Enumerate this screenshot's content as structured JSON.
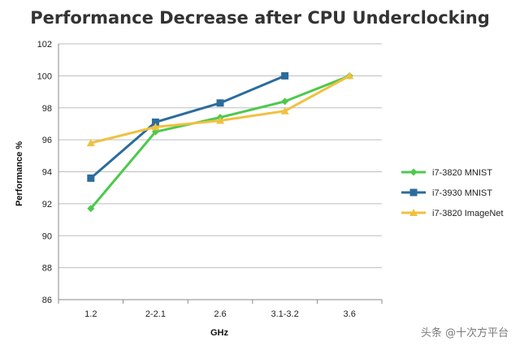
{
  "chart_data": {
    "type": "line",
    "title": "Performance Decrease after CPU Underclocking",
    "xlabel": "GHz",
    "ylabel": "Performance %",
    "categories": [
      "1.2",
      "2-2.1",
      "2.6",
      "3.1-3.2",
      "3.6"
    ],
    "ylim": [
      86,
      102
    ],
    "yticks": [
      86,
      88,
      90,
      92,
      94,
      96,
      98,
      100,
      102
    ],
    "grid": "horizontal",
    "legend": "right",
    "series": [
      {
        "name": "i7-3820 MNIST",
        "values": [
          91.7,
          96.5,
          97.4,
          98.4,
          100
        ],
        "color": "#4cc94c",
        "marker": "diamond"
      },
      {
        "name": "i7-3930 MNIST",
        "values": [
          93.6,
          97.1,
          98.3,
          100,
          null
        ],
        "color": "#2b6c9c",
        "marker": "square"
      },
      {
        "name": "i7-3820 ImageNet",
        "values": [
          95.8,
          96.8,
          97.2,
          97.8,
          100
        ],
        "color": "#f0c040",
        "marker": "triangle"
      }
    ]
  },
  "watermark": {
    "text": "头条 @十次方平台"
  }
}
